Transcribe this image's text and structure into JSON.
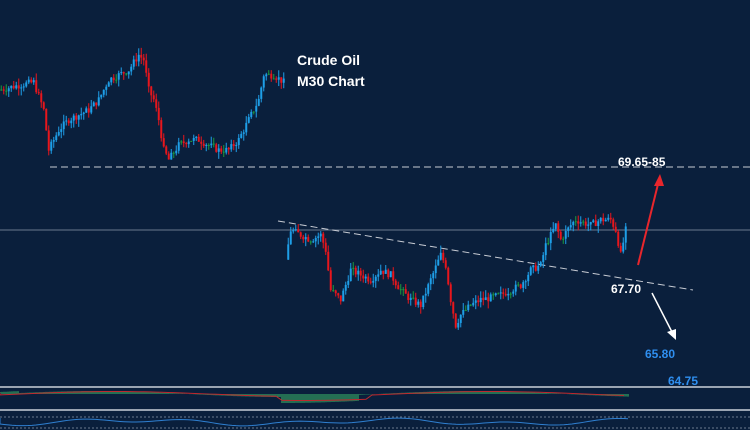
{
  "chart_data": {
    "type": "candlestick",
    "title_lines": [
      "Crude Oil",
      "M30  Chart"
    ],
    "colors": {
      "up": "#1e9fe8",
      "down": "#e8161c",
      "neutral": "#1c9a3c",
      "background": "#0a1f3c",
      "target_up": "#e8262c",
      "target_down": "#ffffff",
      "support_label": "#2f8ff0"
    },
    "segments": [
      {
        "closes": [
          [
            0,
            70.92
          ],
          [
            4,
            71.0
          ],
          [
            7,
            71.05
          ],
          [
            9,
            70.59
          ],
          [
            10,
            69.93
          ],
          [
            12,
            70.26
          ],
          [
            14,
            70.43
          ],
          [
            16,
            70.51
          ],
          [
            18,
            70.59
          ],
          [
            20,
            70.76
          ],
          [
            22,
            71.09
          ],
          [
            24,
            71.17
          ],
          [
            26,
            71.25
          ],
          [
            28,
            71.5
          ],
          [
            29,
            71.42
          ],
          [
            30,
            70.92
          ],
          [
            31,
            70.76
          ],
          [
            32,
            70.43
          ],
          [
            33,
            69.93
          ],
          [
            34,
            69.77
          ],
          [
            36,
            70.01
          ],
          [
            38,
            70.1
          ],
          [
            40,
            70.1
          ],
          [
            42,
            70.01
          ],
          [
            44,
            69.93
          ],
          [
            46,
            69.93
          ],
          [
            48,
            70.1
          ],
          [
            50,
            70.43
          ],
          [
            52,
            70.76
          ],
          [
            53,
            71.17
          ],
          [
            55,
            71.17
          ],
          [
            57,
            71.05
          ]
        ]
      },
      {
        "closes": [
          [
            0,
            68.12
          ],
          [
            1,
            68.61
          ],
          [
            3,
            68.53
          ],
          [
            5,
            68.45
          ],
          [
            7,
            68.53
          ],
          [
            8,
            68.28
          ],
          [
            9,
            67.62
          ],
          [
            11,
            67.46
          ],
          [
            13,
            67.95
          ],
          [
            15,
            67.87
          ],
          [
            17,
            67.79
          ],
          [
            19,
            67.95
          ],
          [
            21,
            67.87
          ],
          [
            23,
            67.62
          ],
          [
            25,
            67.46
          ],
          [
            27,
            67.37
          ],
          [
            29,
            67.79
          ],
          [
            31,
            68.2
          ],
          [
            32,
            68.03
          ],
          [
            33,
            67.46
          ],
          [
            34,
            67.04
          ],
          [
            35,
            67.21
          ],
          [
            37,
            67.37
          ],
          [
            39,
            67.46
          ],
          [
            41,
            67.49
          ],
          [
            43,
            67.54
          ],
          [
            45,
            67.62
          ],
          [
            47,
            67.7
          ],
          [
            49,
            67.95
          ],
          [
            51,
            68.03
          ],
          [
            52,
            68.36
          ],
          [
            54,
            68.69
          ],
          [
            55,
            68.45
          ],
          [
            57,
            68.69
          ],
          [
            58,
            68.78
          ],
          [
            61,
            68.69
          ],
          [
            63,
            68.78
          ],
          [
            65,
            68.78
          ],
          [
            66,
            68.61
          ],
          [
            67,
            68.2
          ],
          [
            68,
            68.61
          ]
        ]
      }
    ],
    "levels": {
      "resistance": 69.65,
      "current": 68.61
    },
    "annotations": {
      "target_up": "69.65-85",
      "trendline_break": "67.70",
      "target_1": "65.80",
      "target_2": "64.75"
    },
    "indicators": [
      "MACD",
      "RSI"
    ]
  }
}
